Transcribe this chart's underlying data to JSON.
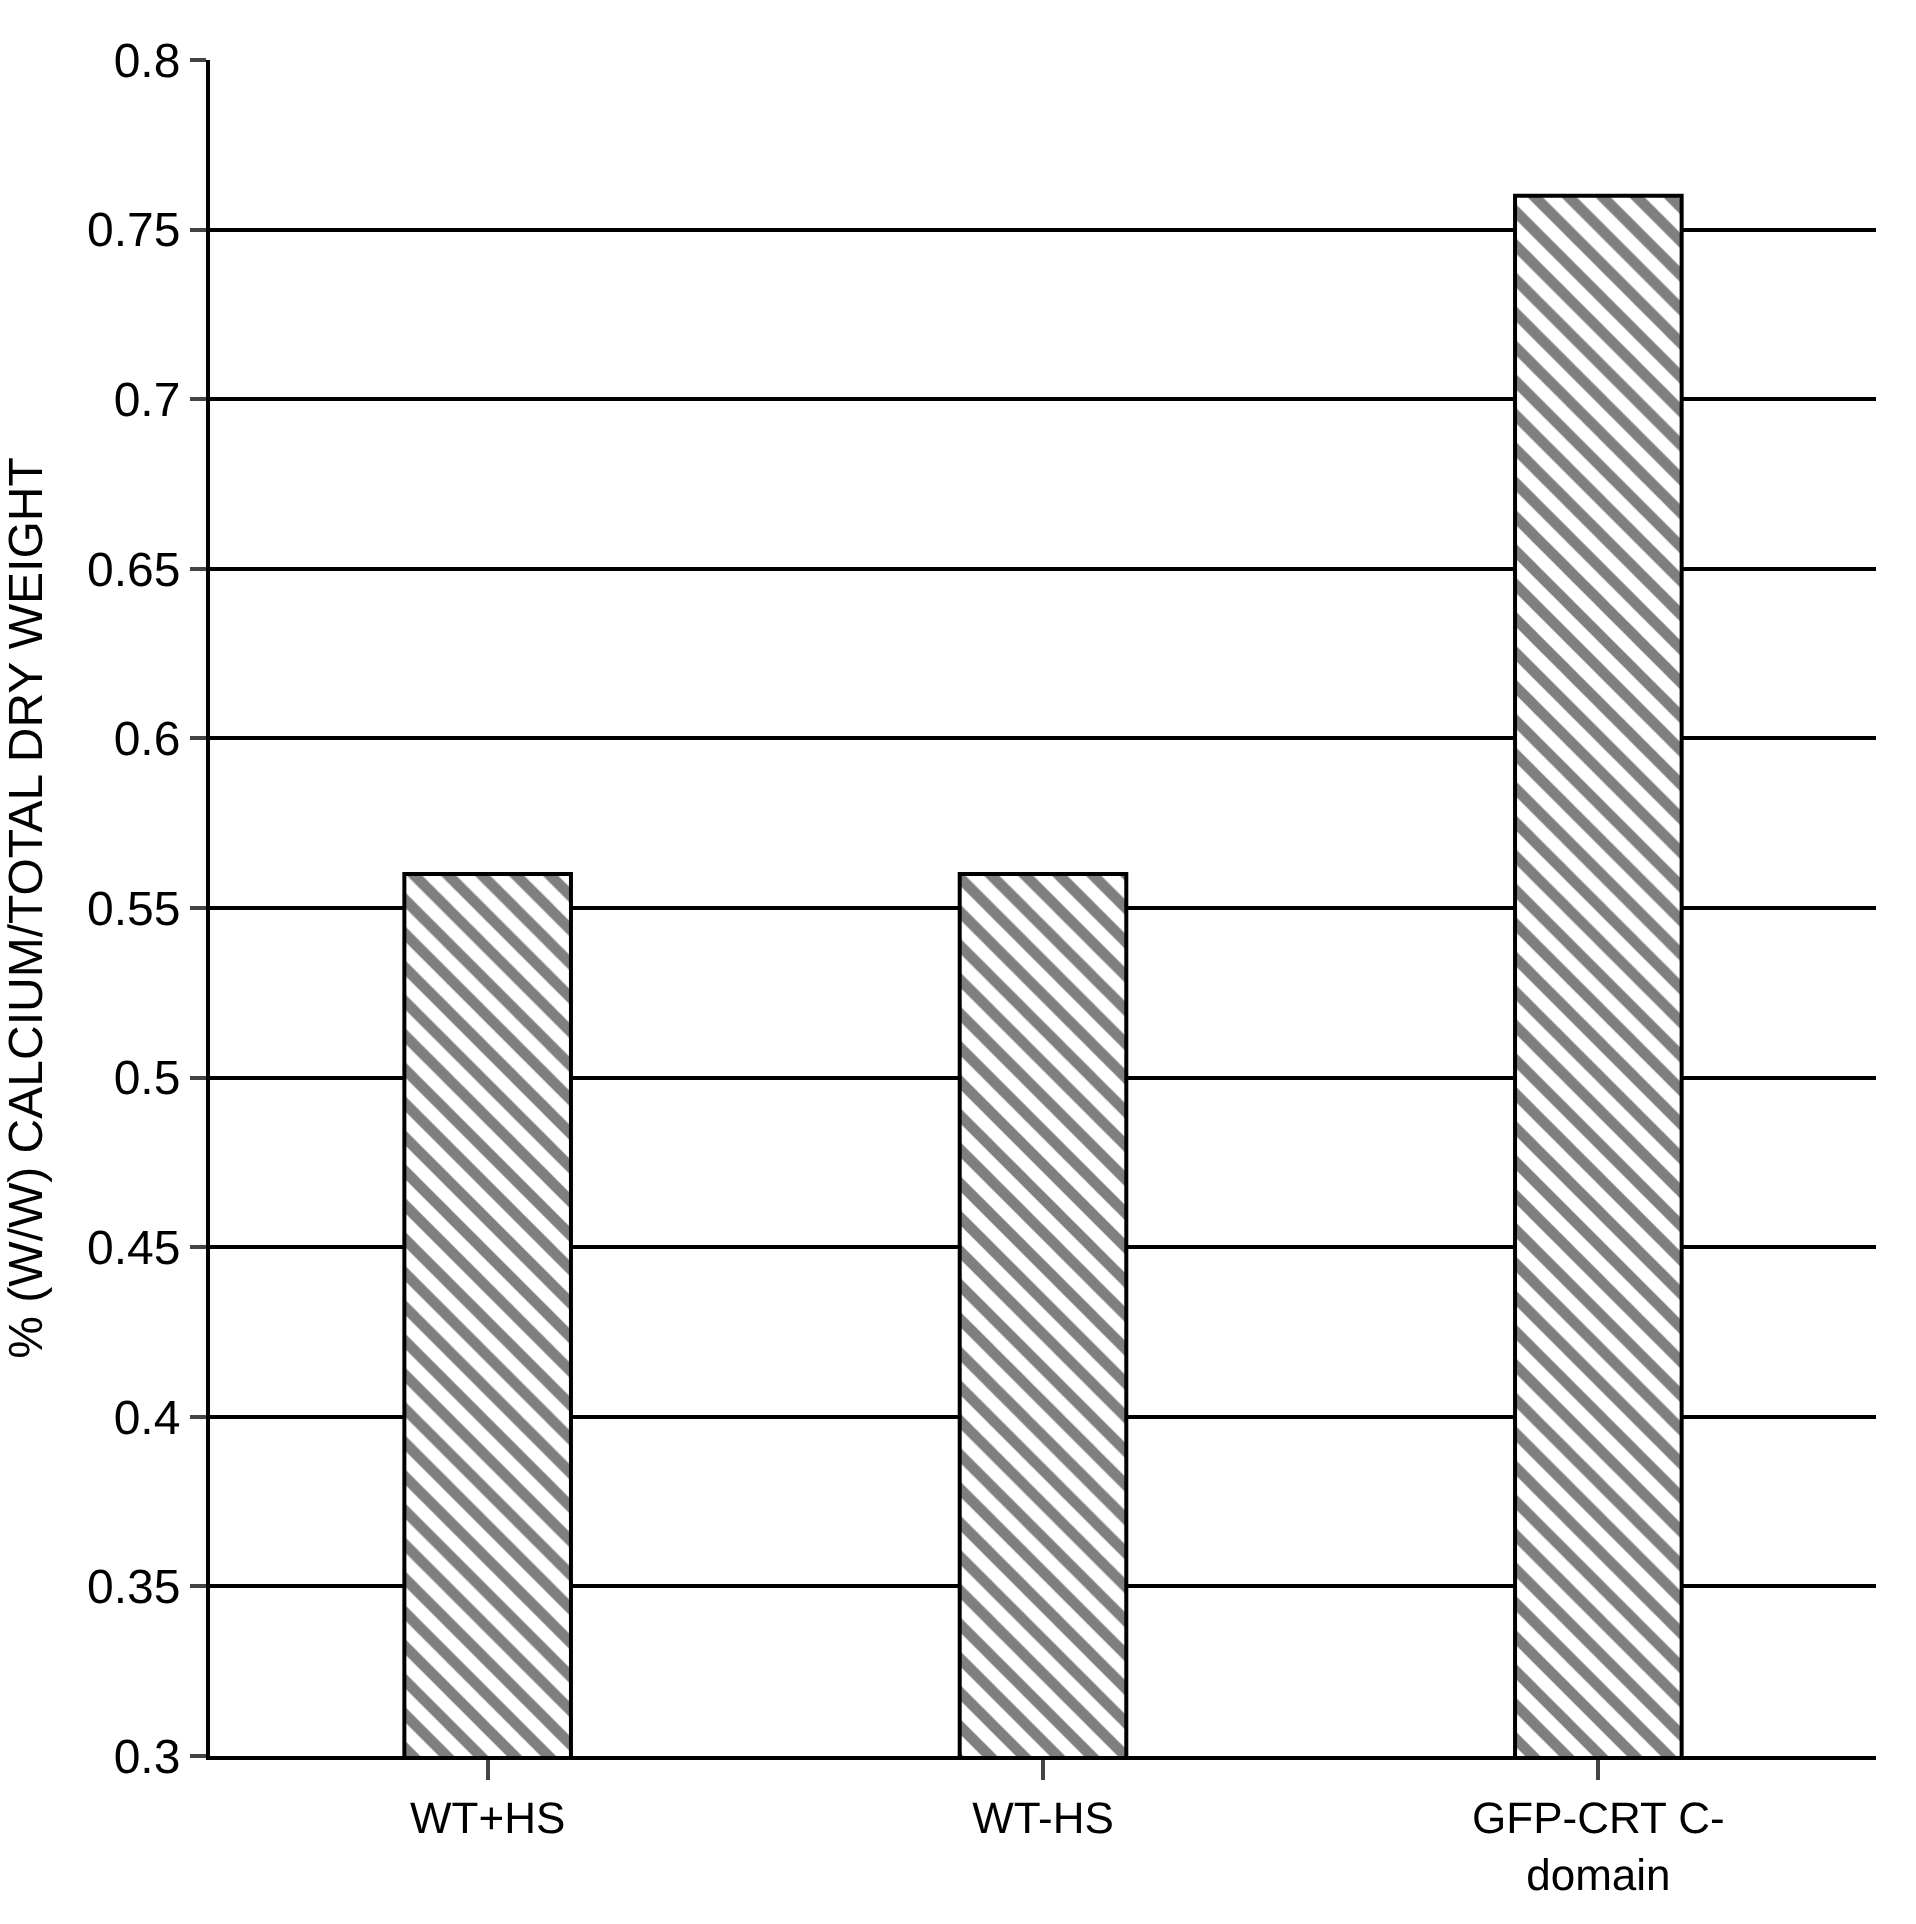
{
  "chart_data": {
    "type": "bar",
    "ylabel": "% (W/W) CALCIUM/TOTAL DRY WEIGHT",
    "categories": [
      "WT+HS",
      "WT-HS",
      "GFP-CRT C-\ndomain"
    ],
    "values": [
      0.56,
      0.56,
      0.76
    ],
    "color": "#000000",
    "ylim": [
      0.3,
      0.8
    ],
    "yticks": [
      0.3,
      0.35,
      0.4,
      0.45,
      0.5,
      0.55,
      0.6,
      0.65,
      0.7,
      0.75,
      0.8
    ],
    "grid": "y"
  }
}
